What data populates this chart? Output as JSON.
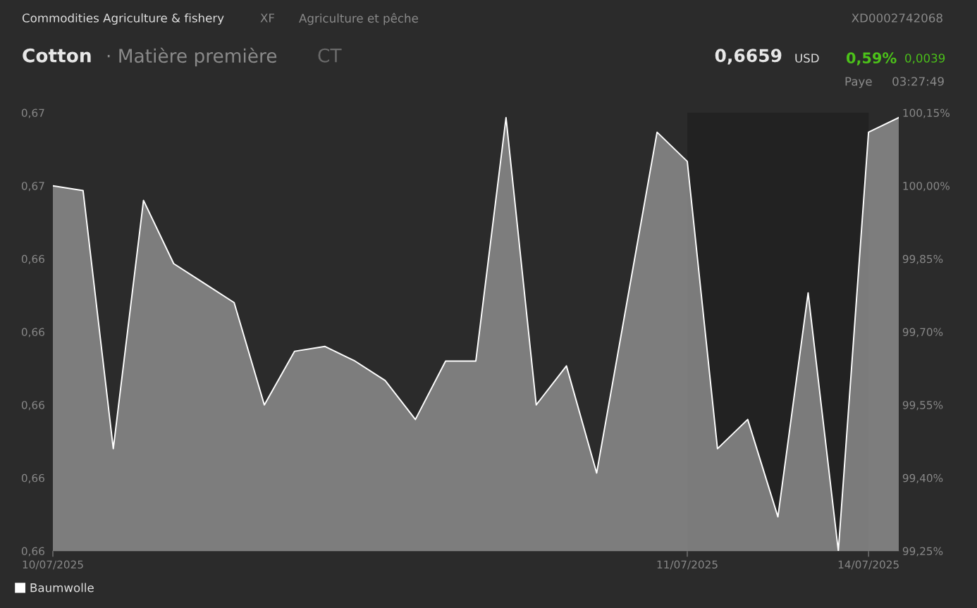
{
  "chart_data": {
    "type": "area",
    "title": "Cotton",
    "annotations": [
      "Commodities Agriculture & fishery",
      "XF",
      "Agriculture et pêche",
      "XD0002742068",
      "· Matière première",
      "CT",
      "0,6659",
      "USD",
      "0,59%",
      "0,0039",
      "Paye",
      "03:27:49"
    ],
    "categories": [
      "10/07/2025",
      null,
      null,
      null,
      null,
      null,
      null,
      null,
      null,
      null,
      null,
      null,
      null,
      null,
      null,
      null,
      null,
      null,
      null,
      null,
      null,
      "11/07/2025",
      null,
      null,
      null,
      null,
      null,
      "14/07/2025",
      null
    ],
    "series": [
      {
        "name": "Baumwolle",
        "color": "#ffffff",
        "axis": "y2",
        "values": [
          100.0,
          99.99,
          99.46,
          99.97,
          99.84,
          99.8,
          99.76,
          99.55,
          99.66,
          99.67,
          99.64,
          99.6,
          99.52,
          99.64,
          99.64,
          100.14,
          99.55,
          99.63,
          99.41,
          99.76,
          100.11,
          100.05,
          99.46,
          99.52,
          99.32,
          99.78,
          99.25,
          100.11,
          100.14
        ]
      }
    ],
    "ylim": [
      0.6601,
      0.6661
    ],
    "yticks": [
      {
        "value": 0.6601,
        "label": "0,66"
      },
      {
        "value": 0.6611,
        "label": "0,66"
      },
      {
        "value": 0.6621,
        "label": "0,66"
      },
      {
        "value": 0.6631,
        "label": "0,66"
      },
      {
        "value": 0.6641,
        "label": "0,66"
      },
      {
        "value": 0.6651,
        "label": "0,67"
      },
      {
        "value": 0.6661,
        "label": "0,67"
      }
    ],
    "y2lim": [
      99.25,
      100.15
    ],
    "y2ticks": [
      {
        "value": 99.25,
        "label": "99,25%"
      },
      {
        "value": 99.4,
        "label": "99,40%"
      },
      {
        "value": 99.55,
        "label": "99,55%"
      },
      {
        "value": 99.7,
        "label": "99,70%"
      },
      {
        "value": 99.85,
        "label": "99,85%"
      },
      {
        "value": 100.0,
        "label": "100,00%"
      },
      {
        "value": 100.15,
        "label": "100,15%"
      }
    ],
    "bands": [
      {
        "axis": "x",
        "from": "11/07/2025",
        "to": "14/07/2025",
        "color": "#222222"
      }
    ],
    "legend": "bottom left",
    "grid": false
  }
}
